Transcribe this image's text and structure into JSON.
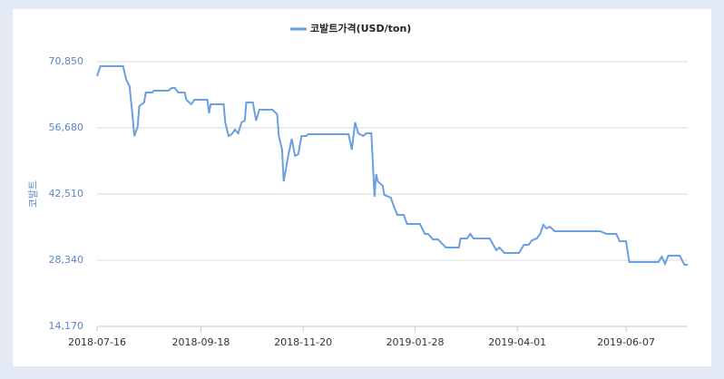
{
  "chart_data": {
    "type": "line",
    "legend_label": "코발트가격(USD/ton)",
    "ylabel": "코발트",
    "xlim": [
      "2018-07-16",
      "2019-07-15"
    ],
    "xticks": [
      "2018-07-16",
      "2018-09-18",
      "2018-11-20",
      "2019-01-28",
      "2019-04-01",
      "2019-06-07"
    ],
    "ylim": [
      14170,
      70850
    ],
    "yticks": [
      {
        "value": 14170,
        "label": "14,170"
      },
      {
        "value": 28340,
        "label": "28,340"
      },
      {
        "value": 42510,
        "label": "42,510"
      },
      {
        "value": 56680,
        "label": "56,680"
      },
      {
        "value": 70850,
        "label": "70,850"
      }
    ],
    "grid": true,
    "legend": "top",
    "x": [
      "2018-07-16",
      "2018-07-18",
      "2018-08-01",
      "2018-08-03",
      "2018-08-05",
      "2018-08-07",
      "2018-08-08",
      "2018-08-10",
      "2018-08-11",
      "2018-08-14",
      "2018-08-15",
      "2018-08-19",
      "2018-08-20",
      "2018-08-29",
      "2018-08-31",
      "2018-09-02",
      "2018-09-04",
      "2018-09-08",
      "2018-09-09",
      "2018-09-12",
      "2018-09-14",
      "2018-09-22",
      "2018-09-23",
      "2018-09-24",
      "2018-10-02",
      "2018-10-03",
      "2018-10-05",
      "2018-10-07",
      "2018-10-09",
      "2018-10-11",
      "2018-10-13",
      "2018-10-15",
      "2018-10-16",
      "2018-10-20",
      "2018-10-22",
      "2018-10-24",
      "2018-11-01",
      "2018-11-04",
      "2018-11-05",
      "2018-11-07",
      "2018-11-08",
      "2018-11-09",
      "2018-11-11",
      "2018-11-13",
      "2018-11-15",
      "2018-11-17",
      "2018-11-19",
      "2018-11-22",
      "2018-11-23",
      "2018-12-18",
      "2018-12-20",
      "2018-12-22",
      "2018-12-24",
      "2018-12-27",
      "2018-12-29",
      "2019-01-01",
      "2019-01-03",
      "2019-01-04",
      "2019-01-05",
      "2019-01-08",
      "2019-01-09",
      "2019-01-13",
      "2019-01-15",
      "2019-01-17",
      "2019-01-21",
      "2019-01-23",
      "2019-01-31",
      "2019-02-03",
      "2019-02-05",
      "2019-02-08",
      "2019-02-11",
      "2019-02-16",
      "2019-02-24",
      "2019-02-25",
      "2019-03-01",
      "2019-03-03",
      "2019-03-05",
      "2019-03-15",
      "2019-03-19",
      "2019-03-21",
      "2019-03-24",
      "2019-04-02",
      "2019-04-05",
      "2019-04-08",
      "2019-04-10",
      "2019-04-13",
      "2019-04-15",
      "2019-04-17",
      "2019-04-19",
      "2019-04-21",
      "2019-04-24",
      "2019-05-22",
      "2019-05-26",
      "2019-06-01",
      "2019-06-03",
      "2019-06-07",
      "2019-06-09",
      "2019-06-27",
      "2019-06-29",
      "2019-07-01",
      "2019-07-03",
      "2019-07-10",
      "2019-07-13",
      "2019-07-15"
    ],
    "series": [
      {
        "name": "코발트가격(USD/ton)",
        "color": "#6a9fe0",
        "values": [
          67750,
          69880,
          69880,
          66970,
          65610,
          58820,
          54930,
          56870,
          61340,
          62120,
          64250,
          64250,
          64640,
          64640,
          65220,
          65220,
          64250,
          64250,
          62700,
          61730,
          62700,
          62700,
          59790,
          61730,
          61730,
          57850,
          54930,
          55320,
          56290,
          55520,
          57850,
          58240,
          62120,
          62120,
          58240,
          60560,
          60560,
          59590,
          54930,
          52020,
          45230,
          47170,
          51050,
          54350,
          50660,
          51050,
          54930,
          54930,
          55320,
          55320,
          52020,
          57850,
          55520,
          54930,
          55520,
          55520,
          41930,
          46780,
          45230,
          44260,
          42320,
          41730,
          39790,
          38050,
          38050,
          36110,
          36110,
          33970,
          33970,
          32810,
          32810,
          31060,
          31060,
          33000,
          33000,
          33970,
          33000,
          33000,
          30480,
          31060,
          29900,
          29900,
          31640,
          31640,
          32610,
          33000,
          33970,
          35910,
          35130,
          35520,
          34550,
          34550,
          33970,
          33970,
          32420,
          32420,
          27960,
          27960,
          29120,
          27570,
          29310,
          29310,
          27370,
          27370
        ]
      }
    ]
  }
}
